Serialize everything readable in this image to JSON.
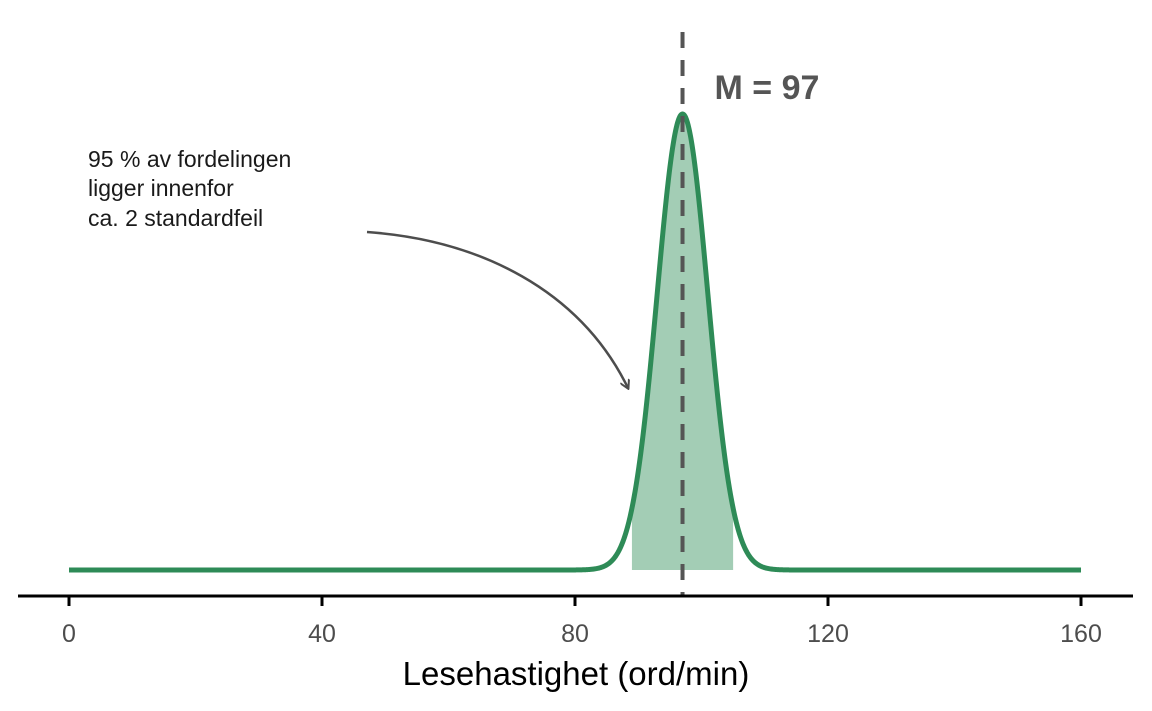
{
  "chart_data": {
    "type": "area",
    "xlabel": "Lesehastighet (ord/min)",
    "ylabel": "",
    "xlim": [
      0,
      160
    ],
    "xticks": [
      0,
      40,
      80,
      120,
      160
    ],
    "grid": false,
    "distribution": {
      "kind": "normal",
      "mean": 97,
      "standard_error": 4
    },
    "shaded_interval": [
      89,
      105
    ],
    "mean_line": {
      "x": 97,
      "label": "M = 97"
    },
    "annotation": {
      "lines": [
        "95 % av fordelingen",
        "ligger innenfor",
        "ca. 2 standardfeil"
      ]
    },
    "colors": {
      "curve": "#2e8b57",
      "fill": "#a3cdb5",
      "mean_line": "#555555",
      "axis": "#000000"
    }
  }
}
